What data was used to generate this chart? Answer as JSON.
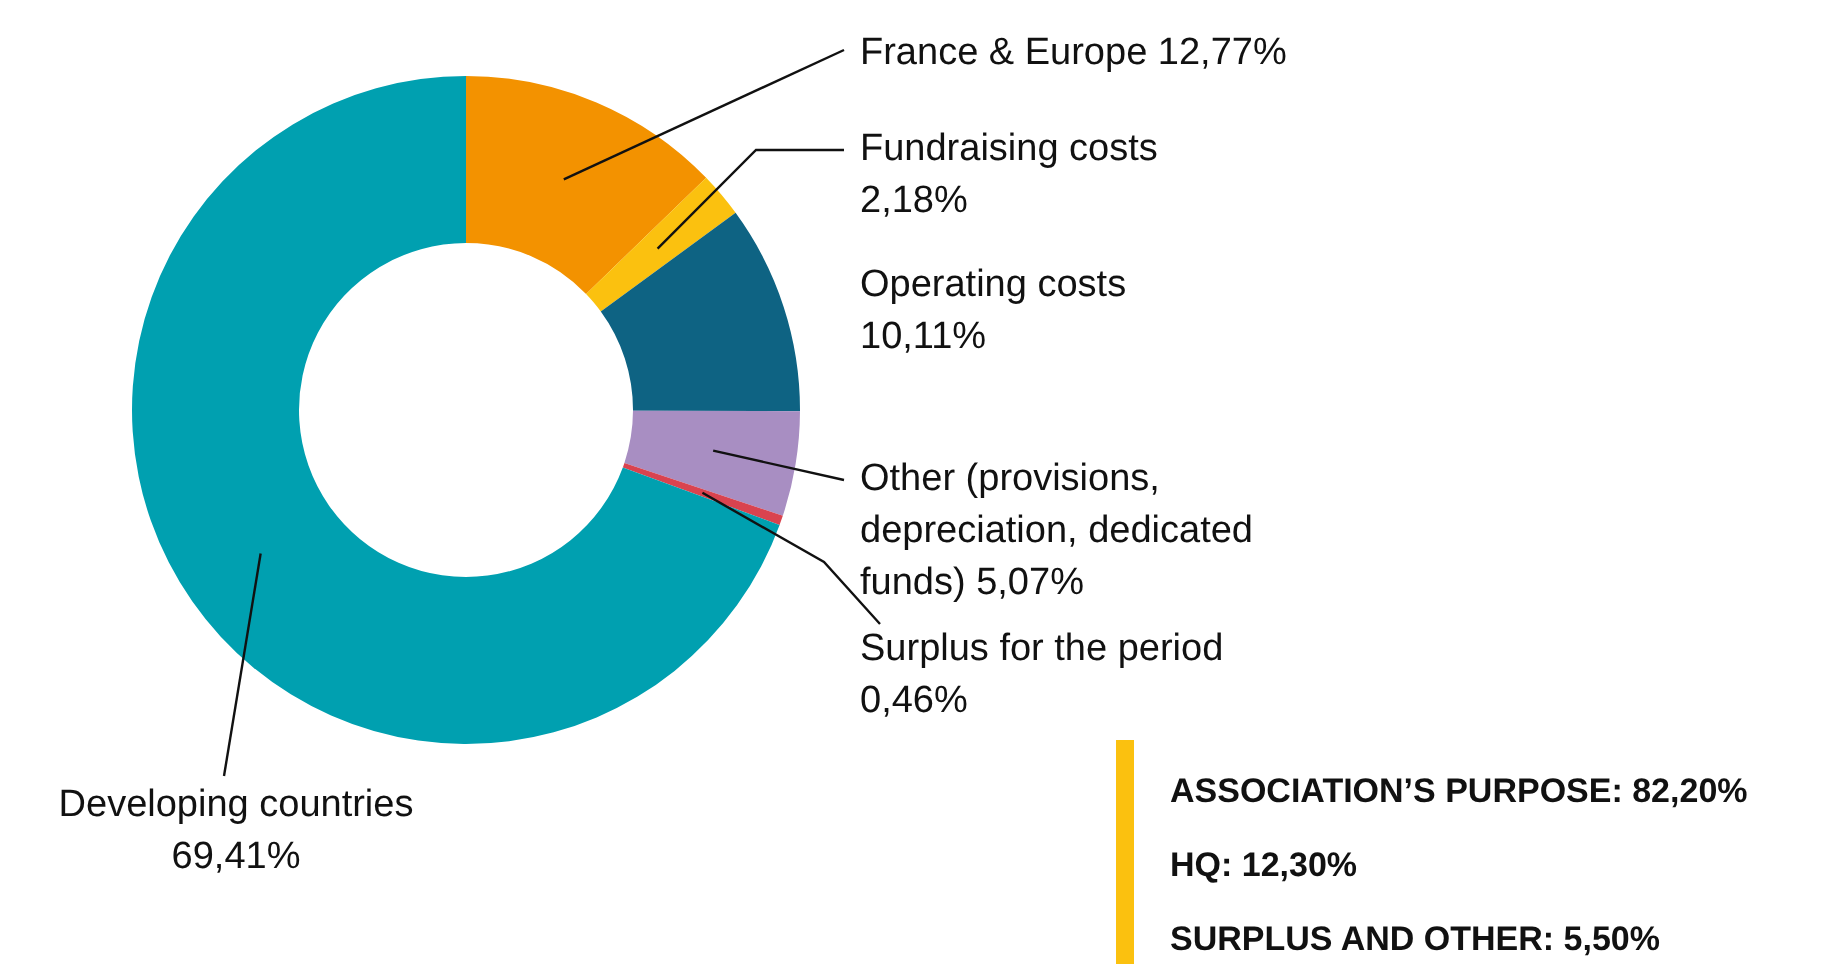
{
  "chart_data": {
    "type": "donut",
    "categories": [
      "France & Europe",
      "Fundraising costs",
      "Operating costs",
      "Other (provisions, depreciation, dedicated funds)",
      "Surplus for the period",
      "Developing countries"
    ],
    "values": [
      12.77,
      2.18,
      10.11,
      5.07,
      0.46,
      69.41
    ],
    "colors": [
      "#f39200",
      "#fbc10f",
      "#0e6383",
      "#a88ec2",
      "#d9434f",
      "#00a0b0"
    ],
    "value_labels": [
      "12,77%",
      "2,18%",
      "10,11%",
      "5,07%",
      "0,46%",
      "69,41%"
    ],
    "annotations": [
      "ASSOCIATION’S PURPOSE: 82,20%",
      "HQ: 12,30%",
      "SURPLUS AND OTHER: 5,50%"
    ]
  }
}
